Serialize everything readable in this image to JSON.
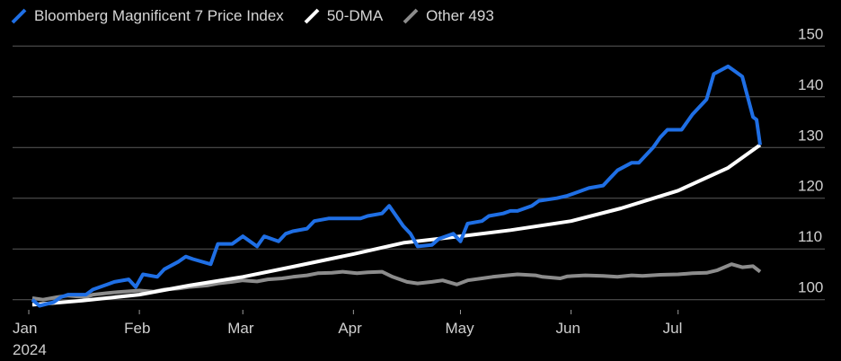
{
  "legend": [
    {
      "label": "Bloomberg Magnificent 7 Price Index",
      "icon": "diagonal-line-swatch",
      "color": "#1f6fe5"
    },
    {
      "label": "50-DMA",
      "icon": "diagonal-line-swatch",
      "color": "#ffffff"
    },
    {
      "label": "Other 493",
      "icon": "diagonal-line-swatch",
      "color": "#8c8c8c"
    }
  ],
  "chart_data": {
    "type": "line",
    "xlabels": [
      "Jan\n2024",
      "Feb",
      "Mar",
      "Apr",
      "May",
      "Jun",
      "Jul"
    ],
    "xticks": [
      "2024-01-01",
      "2024-02-01",
      "2024-03-01",
      "2024-04-01",
      "2024-05-01",
      "2024-06-01",
      "2024-07-01"
    ],
    "xlim": [
      "2023-12-29",
      "2024-07-24"
    ],
    "ylim": [
      98,
      152
    ],
    "yticks": [
      100,
      110,
      120,
      130,
      140,
      150
    ],
    "y_axis_position": "right",
    "grid": true,
    "series": [
      {
        "name": "Bloomberg Magnificent 7 Price Index",
        "color": "#1f6fe5",
        "points": [
          [
            "2024-01-02",
            100
          ],
          [
            "2024-01-04",
            98.8
          ],
          [
            "2024-01-08",
            99.5
          ],
          [
            "2024-01-10",
            100.5
          ],
          [
            "2024-01-12",
            101
          ],
          [
            "2024-01-17",
            101
          ],
          [
            "2024-01-19",
            102
          ],
          [
            "2024-01-23",
            103
          ],
          [
            "2024-01-25",
            103.5
          ],
          [
            "2024-01-29",
            104
          ],
          [
            "2024-01-31",
            102.5
          ],
          [
            "2024-02-02",
            105
          ],
          [
            "2024-02-06",
            104.5
          ],
          [
            "2024-02-08",
            106
          ],
          [
            "2024-02-12",
            107.5
          ],
          [
            "2024-02-14",
            108.5
          ],
          [
            "2024-02-16",
            108
          ],
          [
            "2024-02-21",
            107
          ],
          [
            "2024-02-23",
            111
          ],
          [
            "2024-02-27",
            111
          ],
          [
            "2024-03-01",
            112.5
          ],
          [
            "2024-03-05",
            110.5
          ],
          [
            "2024-03-07",
            112.5
          ],
          [
            "2024-03-11",
            111.5
          ],
          [
            "2024-03-13",
            113
          ],
          [
            "2024-03-15",
            113.5
          ],
          [
            "2024-03-19",
            114
          ],
          [
            "2024-03-21",
            115.5
          ],
          [
            "2024-03-25",
            116
          ],
          [
            "2024-03-27",
            116
          ],
          [
            "2024-04-01",
            116
          ],
          [
            "2024-04-03",
            116
          ],
          [
            "2024-04-05",
            116.5
          ],
          [
            "2024-04-09",
            117
          ],
          [
            "2024-04-11",
            118.5
          ],
          [
            "2024-04-15",
            114.5
          ],
          [
            "2024-04-17",
            113
          ],
          [
            "2024-04-19",
            110.5
          ],
          [
            "2024-04-23",
            110.8
          ],
          [
            "2024-04-25",
            112
          ],
          [
            "2024-04-29",
            113
          ],
          [
            "2024-05-01",
            111.5
          ],
          [
            "2024-05-03",
            115
          ],
          [
            "2024-05-07",
            115.5
          ],
          [
            "2024-05-09",
            116.5
          ],
          [
            "2024-05-13",
            117
          ],
          [
            "2024-05-15",
            117.5
          ],
          [
            "2024-05-17",
            117.5
          ],
          [
            "2024-05-21",
            118.5
          ],
          [
            "2024-05-23",
            119.5
          ],
          [
            "2024-05-28",
            120
          ],
          [
            "2024-05-31",
            120.5
          ],
          [
            "2024-06-04",
            121.5
          ],
          [
            "2024-06-06",
            122
          ],
          [
            "2024-06-10",
            122.5
          ],
          [
            "2024-06-12",
            124
          ],
          [
            "2024-06-14",
            125.5
          ],
          [
            "2024-06-18",
            127
          ],
          [
            "2024-06-20",
            127
          ],
          [
            "2024-06-24",
            130
          ],
          [
            "2024-06-26",
            132
          ],
          [
            "2024-06-28",
            133.5
          ],
          [
            "2024-07-02",
            133.5
          ],
          [
            "2024-07-05",
            136.5
          ],
          [
            "2024-07-09",
            139.5
          ],
          [
            "2024-07-11",
            144.5
          ],
          [
            "2024-07-15",
            146
          ],
          [
            "2024-07-17",
            145
          ],
          [
            "2024-07-19",
            144
          ],
          [
            "2024-07-22",
            136
          ],
          [
            "2024-07-23",
            135.5
          ],
          [
            "2024-07-24",
            130.5
          ]
        ]
      },
      {
        "name": "50-DMA",
        "color": "#ffffff",
        "points": [
          [
            "2024-01-02",
            99
          ],
          [
            "2024-01-16",
            99.8
          ],
          [
            "2024-02-01",
            101
          ],
          [
            "2024-02-15",
            102.8
          ],
          [
            "2024-03-01",
            104.5
          ],
          [
            "2024-03-15",
            106.5
          ],
          [
            "2024-04-01",
            109
          ],
          [
            "2024-04-15",
            111.2
          ],
          [
            "2024-05-01",
            112.5
          ],
          [
            "2024-05-15",
            113.7
          ],
          [
            "2024-06-01",
            115.5
          ],
          [
            "2024-06-15",
            118
          ],
          [
            "2024-07-01",
            121.5
          ],
          [
            "2024-07-15",
            126
          ],
          [
            "2024-07-24",
            130.5
          ]
        ]
      },
      {
        "name": "Other 493",
        "color": "#8c8c8c",
        "points": [
          [
            "2024-01-02",
            100.3
          ],
          [
            "2024-01-05",
            100
          ],
          [
            "2024-01-09",
            100.5
          ],
          [
            "2024-01-12",
            100.8
          ],
          [
            "2024-01-17",
            100.5
          ],
          [
            "2024-01-19",
            101
          ],
          [
            "2024-01-23",
            101.3
          ],
          [
            "2024-01-26",
            101.5
          ],
          [
            "2024-01-30",
            101.7
          ],
          [
            "2024-02-01",
            101.8
          ],
          [
            "2024-02-05",
            101.6
          ],
          [
            "2024-02-08",
            102
          ],
          [
            "2024-02-12",
            102.2
          ],
          [
            "2024-02-15",
            102.5
          ],
          [
            "2024-02-20",
            102.8
          ],
          [
            "2024-02-23",
            103.2
          ],
          [
            "2024-02-27",
            103.5
          ],
          [
            "2024-03-01",
            103.8
          ],
          [
            "2024-03-05",
            103.6
          ],
          [
            "2024-03-08",
            104
          ],
          [
            "2024-03-12",
            104.2
          ],
          [
            "2024-03-15",
            104.5
          ],
          [
            "2024-03-19",
            104.8
          ],
          [
            "2024-03-22",
            105.2
          ],
          [
            "2024-03-26",
            105.3
          ],
          [
            "2024-03-29",
            105.5
          ],
          [
            "2024-04-02",
            105.2
          ],
          [
            "2024-04-05",
            105.4
          ],
          [
            "2024-04-09",
            105.5
          ],
          [
            "2024-04-12",
            104.5
          ],
          [
            "2024-04-16",
            103.5
          ],
          [
            "2024-04-19",
            103.2
          ],
          [
            "2024-04-23",
            103.5
          ],
          [
            "2024-04-26",
            103.8
          ],
          [
            "2024-04-30",
            103
          ],
          [
            "2024-05-03",
            103.8
          ],
          [
            "2024-05-07",
            104.2
          ],
          [
            "2024-05-10",
            104.5
          ],
          [
            "2024-05-14",
            104.8
          ],
          [
            "2024-05-17",
            105
          ],
          [
            "2024-05-22",
            104.8
          ],
          [
            "2024-05-24",
            104.5
          ],
          [
            "2024-05-29",
            104.2
          ],
          [
            "2024-05-31",
            104.6
          ],
          [
            "2024-06-05",
            104.8
          ],
          [
            "2024-06-10",
            104.7
          ],
          [
            "2024-06-14",
            104.5
          ],
          [
            "2024-06-18",
            104.8
          ],
          [
            "2024-06-21",
            104.7
          ],
          [
            "2024-06-26",
            104.9
          ],
          [
            "2024-07-01",
            105
          ],
          [
            "2024-07-05",
            105.2
          ],
          [
            "2024-07-09",
            105.3
          ],
          [
            "2024-07-12",
            105.8
          ],
          [
            "2024-07-16",
            107
          ],
          [
            "2024-07-19",
            106.4
          ],
          [
            "2024-07-22",
            106.6
          ],
          [
            "2024-07-24",
            105.5
          ]
        ]
      }
    ]
  }
}
